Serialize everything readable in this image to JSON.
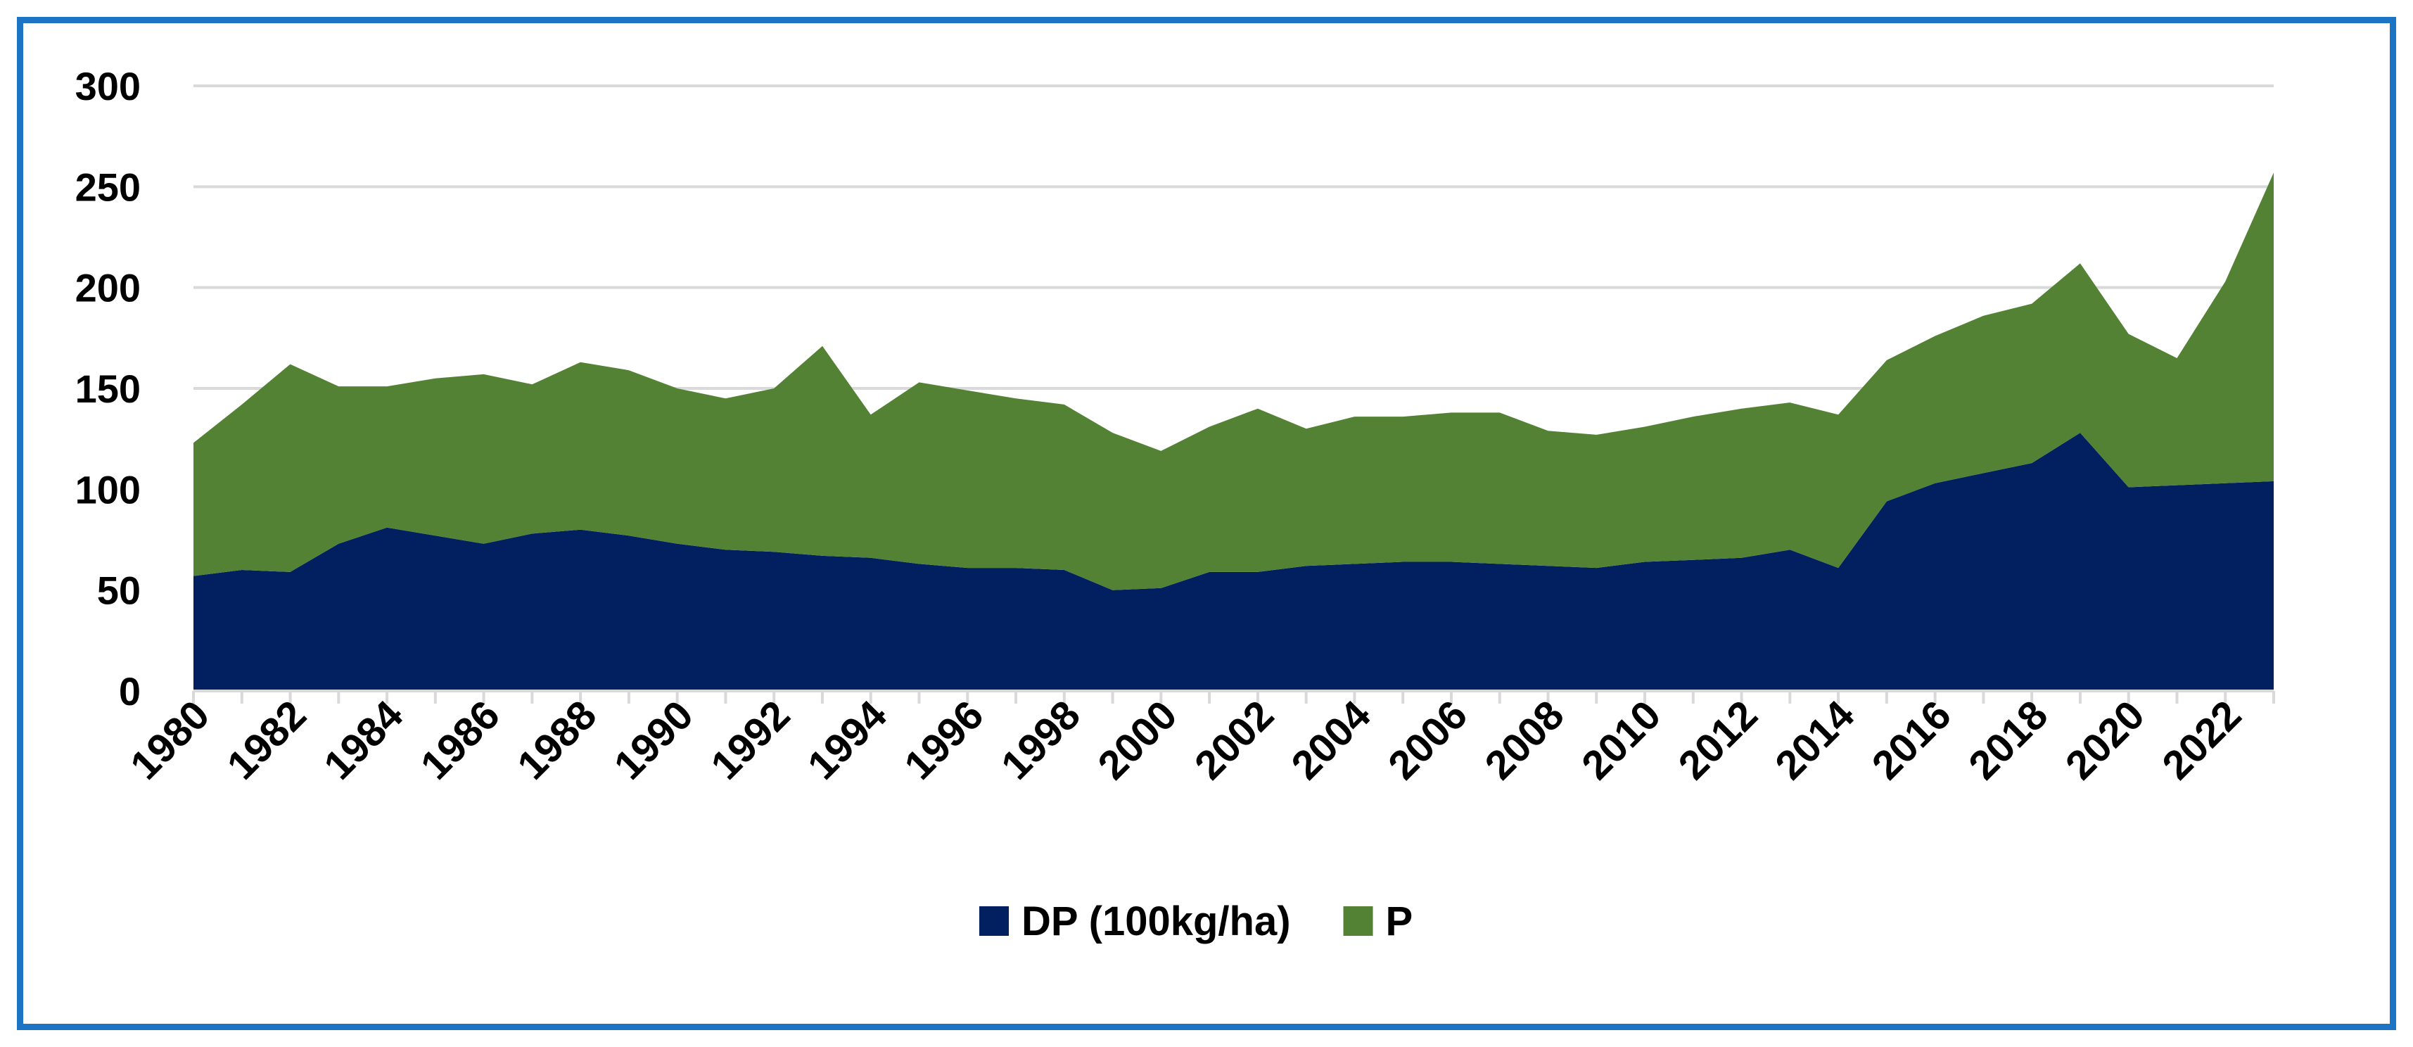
{
  "chart_data": {
    "type": "area",
    "stacked": true,
    "title": "",
    "xlabel": "",
    "ylabel": "",
    "ylim": [
      0,
      300
    ],
    "yticks": [
      0,
      50,
      100,
      150,
      200,
      250,
      300
    ],
    "grid": true,
    "legend_position": "bottom",
    "x": [
      1980,
      1981,
      1982,
      1983,
      1984,
      1985,
      1986,
      1987,
      1988,
      1989,
      1990,
      1991,
      1992,
      1993,
      1994,
      1995,
      1996,
      1997,
      1998,
      1999,
      2000,
      2001,
      2002,
      2003,
      2004,
      2005,
      2006,
      2007,
      2008,
      2009,
      2010,
      2011,
      2012,
      2013,
      2014,
      2015,
      2016,
      2017,
      2018,
      2019,
      2020,
      2021,
      2022,
      2023
    ],
    "x_tick_labels": [
      "1980",
      "1982",
      "1984",
      "1986",
      "1988",
      "1990",
      "1992",
      "1994",
      "1996",
      "1998",
      "2000",
      "2002",
      "2004",
      "2006",
      "2008",
      "2010",
      "2012",
      "2014",
      "2016",
      "2018",
      "2020",
      "2022"
    ],
    "series": [
      {
        "name": "DP (100kg/ha)",
        "color": "#022060",
        "values": [
          57,
          60,
          59,
          73,
          81,
          77,
          73,
          78,
          80,
          77,
          73,
          70,
          69,
          67,
          66,
          63,
          61,
          61,
          60,
          50,
          51,
          59,
          59,
          62,
          63,
          64,
          64,
          63,
          62,
          61,
          64,
          65,
          66,
          70,
          61,
          94,
          103,
          108,
          113,
          128,
          101,
          102,
          103,
          104
        ]
      },
      {
        "name": "P",
        "color": "#548235",
        "values": [
          66,
          82,
          103,
          78,
          70,
          78,
          84,
          74,
          83,
          82,
          77,
          75,
          81,
          104,
          71,
          90,
          88,
          84,
          82,
          78,
          68,
          72,
          81,
          68,
          73,
          72,
          74,
          75,
          67,
          66,
          67,
          71,
          74,
          73,
          76,
          70,
          73,
          78,
          79,
          84,
          76,
          63,
          100,
          153
        ]
      }
    ]
  }
}
